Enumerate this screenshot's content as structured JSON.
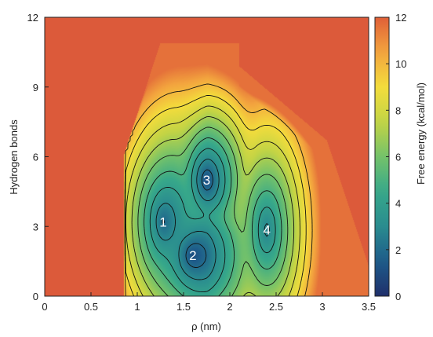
{
  "chart_data": {
    "type": "heatmap",
    "title": "",
    "xlabel": "ρ (nm)",
    "ylabel": "Hydrogen bonds",
    "colorbar_label": "Free energy (kcal/mol)",
    "xlim": [
      0,
      3.5
    ],
    "ylim": [
      0,
      12
    ],
    "zlim": [
      0,
      12
    ],
    "x_ticks": [
      {
        "value": 0,
        "label": "0"
      },
      {
        "value": 0.5,
        "label": "0.5"
      },
      {
        "value": 1,
        "label": "1"
      },
      {
        "value": 1.5,
        "label": "1.5"
      },
      {
        "value": 2,
        "label": "2"
      },
      {
        "value": 2.5,
        "label": "2.5"
      },
      {
        "value": 3,
        "label": "3"
      },
      {
        "value": 3.5,
        "label": "3.5"
      }
    ],
    "y_ticks": [
      {
        "value": 0,
        "label": "0"
      },
      {
        "value": 3,
        "label": "3"
      },
      {
        "value": 6,
        "label": "6"
      },
      {
        "value": 9,
        "label": "9"
      },
      {
        "value": 12,
        "label": "12"
      }
    ],
    "colorbar_ticks": [
      {
        "value": 0,
        "label": "0"
      },
      {
        "value": 2,
        "label": "2"
      },
      {
        "value": 4,
        "label": "4"
      },
      {
        "value": 6,
        "label": "6"
      },
      {
        "value": 8,
        "label": "8"
      },
      {
        "value": 10,
        "label": "10"
      },
      {
        "value": 12,
        "label": "12"
      }
    ],
    "colormap": [
      "#1f2f6b",
      "#1e5b8a",
      "#2a8c8f",
      "#37a88a",
      "#74c26a",
      "#c3d445",
      "#f3dc3c",
      "#f3a43e",
      "#e05f38"
    ],
    "background_color": "#dc5a3a",
    "contour_levels": [
      1,
      2,
      3,
      4,
      5,
      6,
      7,
      8,
      9,
      10
    ],
    "basins": [
      {
        "label": "1",
        "x": 1.28,
        "y": 3.2,
        "energy": 0.3
      },
      {
        "label": "2",
        "x": 1.6,
        "y": 1.75,
        "energy": 0.5
      },
      {
        "label": "3",
        "x": 1.75,
        "y": 5.0,
        "energy": 1.0
      },
      {
        "label": "4",
        "x": 2.4,
        "y": 2.85,
        "energy": 2.6
      }
    ],
    "grid": false
  }
}
